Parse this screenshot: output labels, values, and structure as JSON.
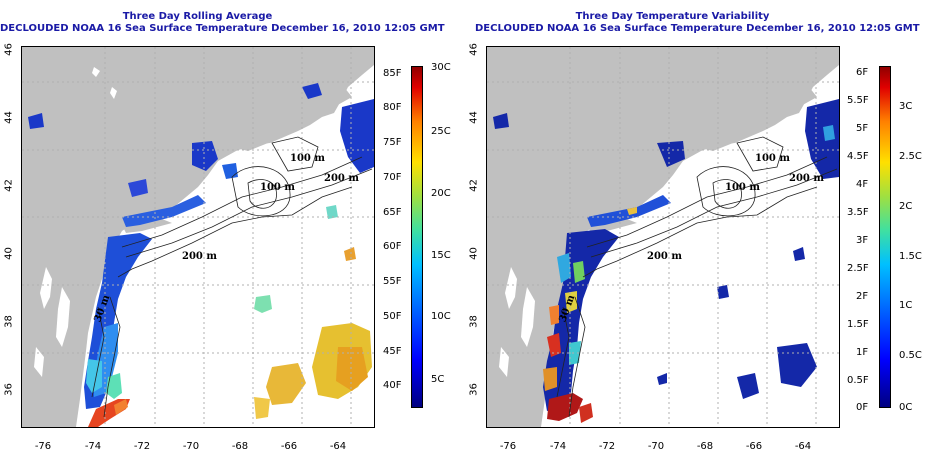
{
  "left_panel": {
    "title_line1": "Three Day Rolling Average",
    "title_line2": "DECLOUDED NOAA 16 Sea Surface Temperature December 16, 2010 12:05 GMT",
    "colorbar_f_labels": [
      "40F",
      "45F",
      "50F",
      "55F",
      "60F",
      "65F",
      "70F",
      "75F",
      "80F",
      "85F"
    ],
    "colorbar_c_labels": [
      "5C",
      "10C",
      "15C",
      "20C",
      "25C",
      "30C"
    ]
  },
  "right_panel": {
    "title_line1": "Three Day Temperature Variability",
    "title_line2": "DECLOUDED NOAA 16 Sea Surface Temperature December 16, 2010 12:05 GMT",
    "colorbar_f_labels": [
      "0F",
      "0.5F",
      "1F",
      "1.5F",
      "2F",
      "2.5F",
      "3F",
      "3.5F",
      "4F",
      "4.5F",
      "5F",
      "5.5F",
      "6F"
    ],
    "colorbar_c_labels": [
      "0C",
      "0.5C",
      "1C",
      "1.5C",
      "2C",
      "2.5C",
      "3C"
    ]
  },
  "lat_labels": [
    "46",
    "44",
    "42",
    "40",
    "38",
    "36"
  ],
  "lon_labels": [
    "-76",
    "-74",
    "-72",
    "-70",
    "-68",
    "-66",
    "-64"
  ],
  "contour_labels": [
    "100 m",
    "100 m",
    "200 m",
    "200 m",
    "30 m"
  ],
  "colors": {
    "land": "#c0c0c0",
    "title": "#1a1aa6",
    "grid": "#b0b0b0"
  }
}
